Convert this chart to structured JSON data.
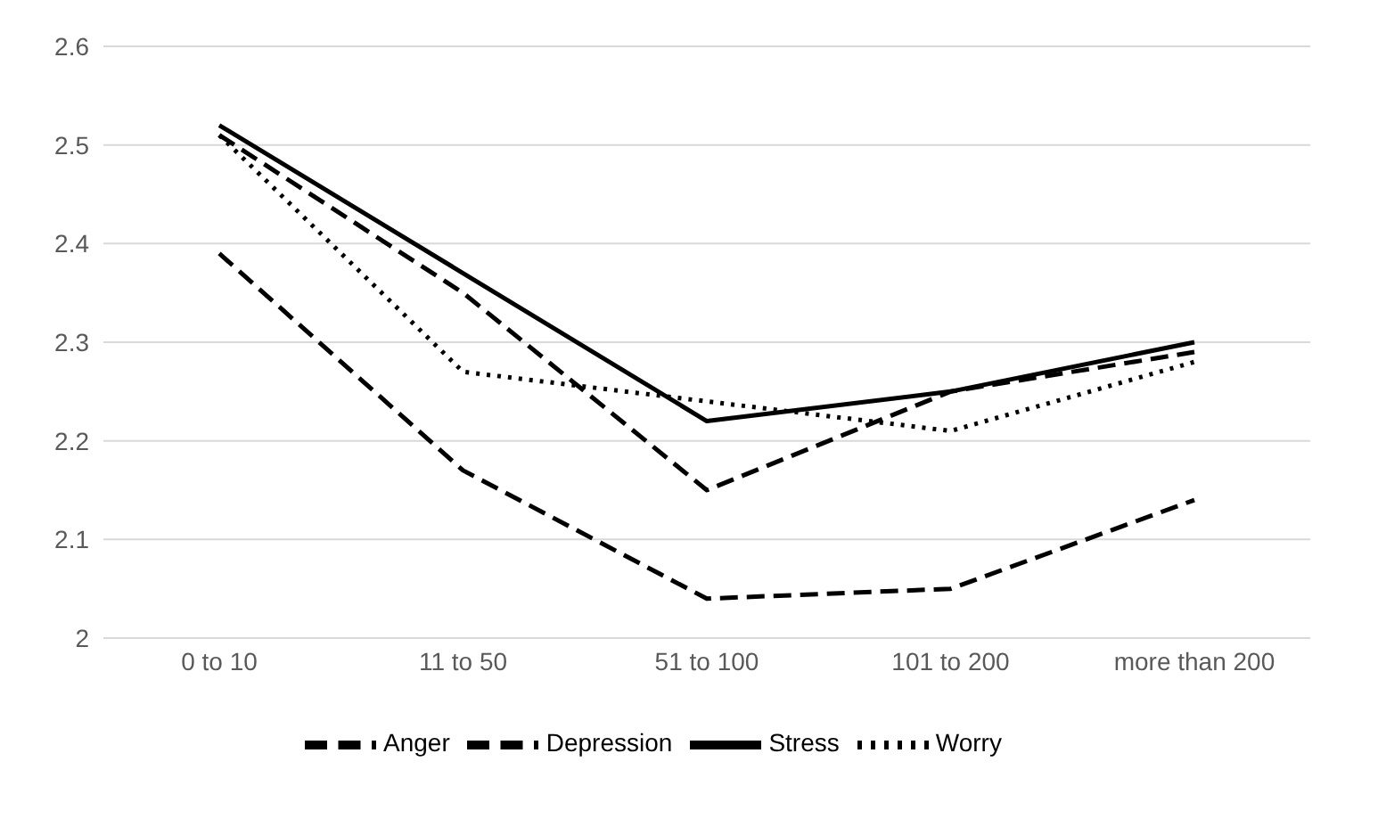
{
  "chart_data": {
    "type": "line",
    "categories": [
      "0 to 10",
      "11 to 50",
      "51 to 100",
      "101 to 200",
      "more than 200"
    ],
    "series": [
      {
        "name": "Anger",
        "color": "#000000",
        "line_style": "dashed",
        "values": [
          2.51,
          2.35,
          2.15,
          2.25,
          2.29
        ]
      },
      {
        "name": "Depression",
        "color": "#000000",
        "line_style": "dashed",
        "values": [
          2.39,
          2.17,
          2.04,
          2.05,
          2.14
        ]
      },
      {
        "name": "Stress",
        "color": "#000000",
        "line_style": "solid",
        "values": [
          2.52,
          2.37,
          2.22,
          2.25,
          2.3
        ]
      },
      {
        "name": "Worry",
        "color": "#000000",
        "line_style": "dotted",
        "values": [
          2.51,
          2.27,
          2.24,
          2.21,
          2.28
        ]
      }
    ],
    "ylim": [
      2,
      2.6
    ],
    "yticks": [
      2,
      2.1,
      2.2,
      2.3,
      2.4,
      2.5,
      2.6
    ],
    "grid": "y",
    "legend": "bottom",
    "marker": "none"
  }
}
